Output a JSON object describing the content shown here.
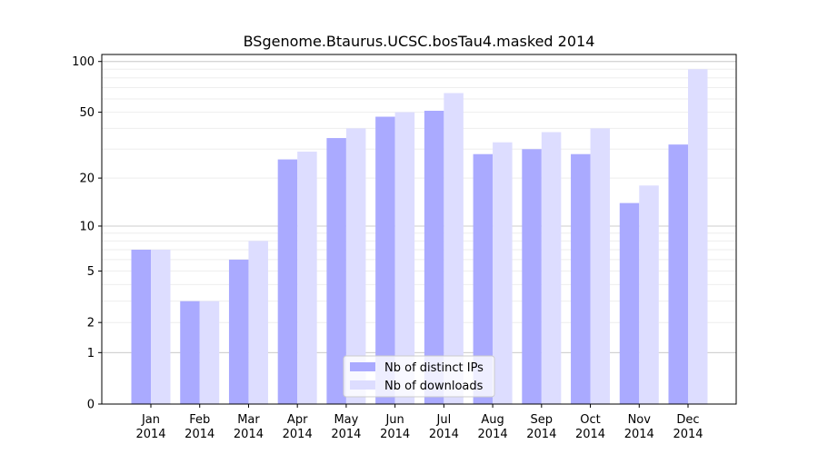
{
  "chart_data": {
    "type": "bar",
    "title": "BSgenome.Btaurus.UCSC.bosTau4.masked 2014",
    "xlabel": "",
    "ylabel": "",
    "yscale": "log1p",
    "ylim": [
      0,
      110
    ],
    "y_ticks": [
      0,
      1,
      2,
      5,
      10,
      20,
      50,
      100
    ],
    "y_tick_labels": [
      "0",
      "1",
      "2",
      "5",
      "10",
      "20",
      "50",
      "100"
    ],
    "grid": "horizontal",
    "legend_position": "bottom-center",
    "categories": [
      [
        "Jan",
        "2014"
      ],
      [
        "Feb",
        "2014"
      ],
      [
        "Mar",
        "2014"
      ],
      [
        "Apr",
        "2014"
      ],
      [
        "May",
        "2014"
      ],
      [
        "Jun",
        "2014"
      ],
      [
        "Jul",
        "2014"
      ],
      [
        "Aug",
        "2014"
      ],
      [
        "Sep",
        "2014"
      ],
      [
        "Oct",
        "2014"
      ],
      [
        "Nov",
        "2014"
      ],
      [
        "Dec",
        "2014"
      ]
    ],
    "series": [
      {
        "name": "Nb of distinct IPs",
        "color": "#aaaaff",
        "values": [
          7,
          3,
          6,
          26,
          35,
          47,
          51,
          28,
          30,
          28,
          14,
          32
        ]
      },
      {
        "name": "Nb of downloads",
        "color": "#ddddff",
        "values": [
          7,
          3,
          8,
          29,
          40,
          50,
          65,
          33,
          38,
          40,
          18,
          90
        ]
      }
    ]
  }
}
